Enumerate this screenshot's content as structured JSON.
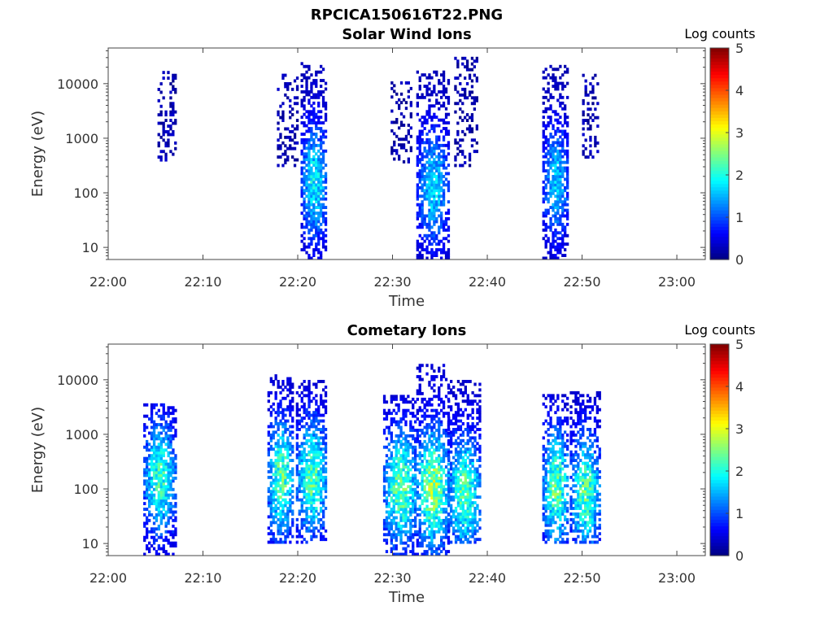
{
  "figure_title": "RPCICA150616T22.PNG",
  "chart_data": [
    {
      "type": "heatmap",
      "title": "Solar Wind Ions",
      "xlabel": "Time",
      "ylabel": "Energy (eV)",
      "x_ticks": [
        "22:00",
        "22:10",
        "22:20",
        "22:30",
        "22:40",
        "22:50",
        "23:00"
      ],
      "x_range_min": [
        0,
        63
      ],
      "y_ticks": [
        "10",
        "100",
        "1000",
        "10000"
      ],
      "y_scale": "log",
      "y_range_ev": [
        6,
        45000
      ],
      "colorbar": {
        "label": "Log counts",
        "ticks": [
          "0",
          "1",
          "2",
          "3",
          "4",
          "5"
        ],
        "range": [
          0,
          5
        ],
        "colormap": "jet"
      },
      "bursts": [
        {
          "t_min": 5.2,
          "t_max": 7.0,
          "e_min": 380,
          "e_max": 16000,
          "peak_log": 1.0,
          "core_e": 0
        },
        {
          "t_min": 17.8,
          "t_max": 20.0,
          "e_min": 300,
          "e_max": 14000,
          "peak_log": 1.0,
          "core_e": 0
        },
        {
          "t_min": 20.3,
          "t_max": 23.0,
          "e_min": 6,
          "e_max": 24000,
          "peak_log": 2.3,
          "core_e": 150
        },
        {
          "t_min": 29.8,
          "t_max": 32.0,
          "e_min": 350,
          "e_max": 10000,
          "peak_log": 1.0,
          "core_e": 0
        },
        {
          "t_min": 32.5,
          "t_max": 35.8,
          "e_min": 6,
          "e_max": 16000,
          "peak_log": 2.1,
          "core_e": 120
        },
        {
          "t_min": 36.5,
          "t_max": 38.8,
          "e_min": 300,
          "e_max": 28000,
          "peak_log": 1.0,
          "core_e": 0
        },
        {
          "t_min": 45.8,
          "t_max": 48.5,
          "e_min": 6,
          "e_max": 20000,
          "peak_log": 2.0,
          "core_e": 150
        },
        {
          "t_min": 50.0,
          "t_max": 51.6,
          "e_min": 380,
          "e_max": 14000,
          "peak_log": 1.0,
          "core_e": 0
        }
      ]
    },
    {
      "type": "heatmap",
      "title": "Cometary Ions",
      "xlabel": "Time",
      "ylabel": "Energy (eV)",
      "x_ticks": [
        "22:00",
        "22:10",
        "22:20",
        "22:30",
        "22:40",
        "22:50",
        "23:00"
      ],
      "x_range_min": [
        0,
        63
      ],
      "y_ticks": [
        "10",
        "100",
        "1000",
        "10000"
      ],
      "y_scale": "log",
      "y_range_ev": [
        6,
        45000
      ],
      "colorbar": {
        "label": "Log counts",
        "ticks": [
          "0",
          "1",
          "2",
          "3",
          "4",
          "5"
        ],
        "range": [
          0,
          5
        ],
        "colormap": "jet"
      },
      "bursts": [
        {
          "t_min": 3.7,
          "t_max": 7.0,
          "e_min": 6,
          "e_max": 3300,
          "peak_log": 2.6,
          "core_e": 150
        },
        {
          "t_min": 16.8,
          "t_max": 19.5,
          "e_min": 10,
          "e_max": 12000,
          "peak_log": 2.9,
          "core_e": 150
        },
        {
          "t_min": 19.8,
          "t_max": 23.0,
          "e_min": 10,
          "e_max": 9000,
          "peak_log": 2.8,
          "core_e": 150
        },
        {
          "t_min": 29.0,
          "t_max": 32.5,
          "e_min": 6,
          "e_max": 5000,
          "peak_log": 2.9,
          "core_e": 100
        },
        {
          "t_min": 32.5,
          "t_max": 35.8,
          "e_min": 6,
          "e_max": 18000,
          "peak_log": 3.3,
          "core_e": 100
        },
        {
          "t_min": 35.8,
          "t_max": 39.2,
          "e_min": 10,
          "e_max": 9500,
          "peak_log": 2.8,
          "core_e": 80
        },
        {
          "t_min": 45.8,
          "t_max": 48.5,
          "e_min": 10,
          "e_max": 5000,
          "peak_log": 2.9,
          "core_e": 100
        },
        {
          "t_min": 48.7,
          "t_max": 51.8,
          "e_min": 10,
          "e_max": 5500,
          "peak_log": 2.8,
          "core_e": 80
        }
      ]
    }
  ]
}
